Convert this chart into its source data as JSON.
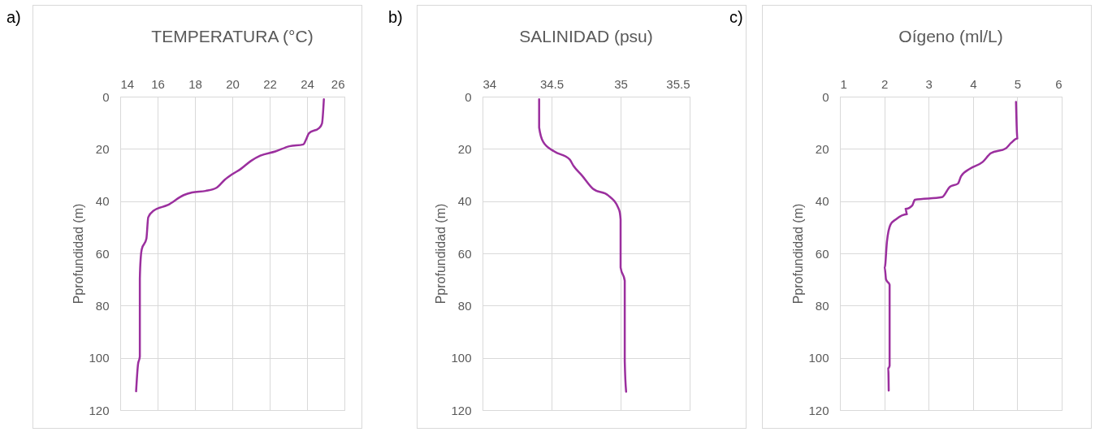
{
  "chart_data": [
    {
      "type": "line",
      "title": "TEMPERATURA (°C)",
      "ylabel": "Pprofundidad (m)",
      "annotations": [
        "a)"
      ],
      "xlim": [
        14,
        26
      ],
      "xticks": [
        14,
        16,
        18,
        20,
        22,
        24,
        26
      ],
      "ylim": [
        120,
        0
      ],
      "yticks": [
        0,
        20,
        40,
        60,
        80,
        100,
        120
      ],
      "grid": true,
      "series": [
        {
          "color": "#9b2f9e",
          "x": [
            24.9,
            24.8,
            24.65,
            24.1,
            23.95,
            23.8,
            23.05,
            22.3,
            21.5,
            21.0,
            20.45,
            20.0,
            19.6,
            19.15,
            18.57,
            17.85,
            17.4,
            16.55,
            15.8,
            15.5,
            15.4,
            15.15,
            15.1,
            15.05,
            15.05,
            14.95,
            14.85
          ],
          "values": [
            1,
            10.3,
            12,
            14,
            16.4,
            18.3,
            19,
            21,
            22.6,
            24.6,
            27.7,
            29.7,
            31.8,
            34.9,
            36.1,
            36.7,
            37.7,
            41.5,
            43.6,
            46.2,
            54.4,
            58.5,
            61.5,
            69.7,
            99.5,
            102.6,
            112.8
          ]
        }
      ]
    },
    {
      "type": "line",
      "title": "SALINIDAD (psu)",
      "ylabel": "Pprofundidad (m)",
      "annotations": [
        "b)"
      ],
      "xlim": [
        34,
        35.5
      ],
      "xticks": [
        34,
        34.5,
        35,
        35.5
      ],
      "ylim": [
        120,
        0
      ],
      "yticks": [
        0,
        20,
        40,
        60,
        80,
        100,
        120
      ],
      "grid": true,
      "series": [
        {
          "color": "#9b2f9e",
          "x": [
            34.41,
            34.41,
            34.44,
            34.52,
            34.63,
            34.66,
            34.72,
            34.8,
            34.91,
            34.99,
            35.0,
            35.0,
            35.03,
            35.03,
            35.04
          ],
          "values": [
            1,
            11.8,
            17.4,
            21,
            24,
            26.6,
            30.2,
            35.3,
            37.8,
            43.5,
            47,
            65.4,
            70.5,
            101.2,
            113
          ]
        }
      ]
    },
    {
      "type": "line",
      "title": "Oígeno (ml/L)",
      "ylabel": "Pprofundidad (m)",
      "annotations": [
        "c)"
      ],
      "xlim": [
        1,
        6
      ],
      "xticks": [
        1,
        2,
        3,
        4,
        5,
        6
      ],
      "ylim": [
        120,
        0
      ],
      "yticks": [
        0,
        20,
        40,
        60,
        80,
        100,
        120
      ],
      "grid": true,
      "series": [
        {
          "color": "#9b2f9e",
          "x": [
            4.97,
            4.99,
            5.0,
            4.86,
            4.74,
            4.4,
            4.22,
            3.94,
            3.73,
            3.66,
            3.48,
            3.3,
            2.69,
            2.63,
            2.48,
            2.51,
            2.26,
            2.14,
            2.06,
            2.01,
            2.04,
            2.12,
            2.12,
            2.09,
            2.1
          ],
          "values": [
            2,
            13.5,
            16,
            17.7,
            19.8,
            21.7,
            25,
            27.5,
            30.5,
            33.3,
            34.5,
            38.5,
            39.5,
            41.7,
            43,
            45,
            47,
            49,
            55.5,
            65.5,
            70,
            72,
            103,
            104,
            112.5
          ]
        }
      ]
    }
  ]
}
